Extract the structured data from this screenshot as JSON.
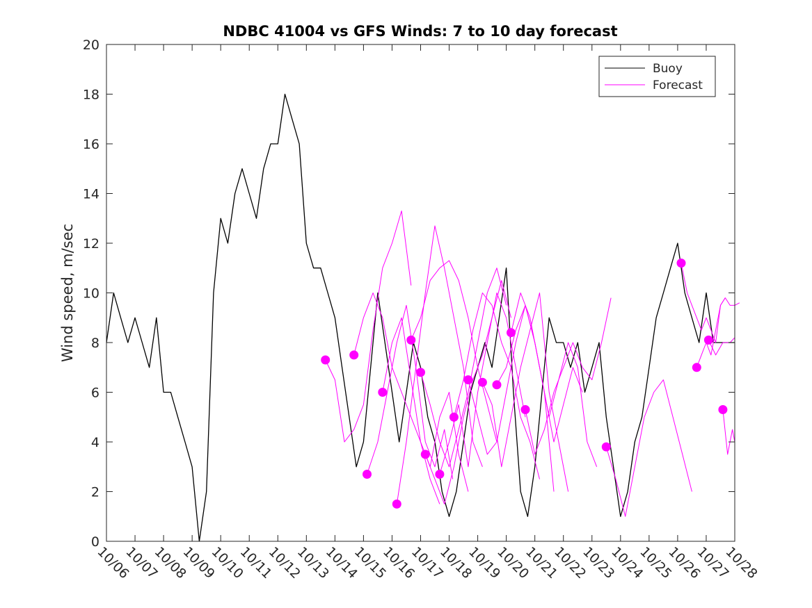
{
  "chart_data": {
    "type": "line",
    "title": "NDBC 41004 vs GFS Winds: 7 to 10 day forecast",
    "xlabel": "",
    "ylabel": "Wind speed, m/sec",
    "xlim": [
      "10/06",
      "10/28"
    ],
    "ylim": [
      0,
      20
    ],
    "x_unit": "date (MM/DD)",
    "x_tick_labels": [
      "10/06",
      "10/07",
      "10/08",
      "10/09",
      "10/10",
      "10/11",
      "10/12",
      "10/13",
      "10/14",
      "10/15",
      "10/16",
      "10/17",
      "10/18",
      "10/19",
      "10/20",
      "10/21",
      "10/22",
      "10/23",
      "10/24",
      "10/25",
      "10/26",
      "10/27",
      "10/28"
    ],
    "y_ticks": [
      0,
      2,
      4,
      6,
      8,
      10,
      12,
      14,
      16,
      18,
      20
    ],
    "grid": false,
    "legend": {
      "placement": "top-right",
      "entries": [
        "Buoy",
        "Forecast"
      ]
    },
    "colors": {
      "buoy": "#000000",
      "forecast": "#ff00ff"
    },
    "series": [
      {
        "name": "Buoy",
        "x": [
          "10/06 00h",
          "10/06 06h",
          "10/06 12h",
          "10/06 18h",
          "10/07 00h",
          "10/07 06h",
          "10/07 12h",
          "10/07 18h",
          "10/08 00h",
          "10/08 06h",
          "10/08 12h",
          "10/08 18h",
          "10/09 00h",
          "10/09 06h",
          "10/09 12h",
          "10/09 18h",
          "10/10 00h",
          "10/10 06h",
          "10/10 12h",
          "10/10 18h",
          "10/11 00h",
          "10/11 06h",
          "10/11 12h",
          "10/11 18h",
          "10/12 00h",
          "10/12 06h",
          "10/12 12h",
          "10/12 18h",
          "10/13 00h",
          "10/13 06h",
          "10/13 12h",
          "10/13 18h",
          "10/14 00h",
          "10/14 06h",
          "10/14 12h",
          "10/14 18h",
          "10/15 00h",
          "10/15 06h",
          "10/15 12h",
          "10/15 18h",
          "10/16 00h",
          "10/16 06h",
          "10/16 12h",
          "10/16 18h",
          "10/17 00h",
          "10/17 06h",
          "10/17 12h",
          "10/17 18h",
          "10/18 00h",
          "10/18 06h",
          "10/18 12h",
          "10/18 18h",
          "10/19 00h",
          "10/19 06h",
          "10/19 12h",
          "10/19 18h",
          "10/20 00h",
          "10/20 06h",
          "10/20 12h",
          "10/20 18h",
          "10/21 00h",
          "10/21 06h",
          "10/21 12h",
          "10/21 18h",
          "10/22 00h",
          "10/22 06h",
          "10/22 12h",
          "10/22 18h",
          "10/23 00h",
          "10/23 06h",
          "10/23 12h",
          "10/23 18h",
          "10/24 00h",
          "10/24 06h",
          "10/24 12h",
          "10/24 18h",
          "10/25 00h",
          "10/25 06h",
          "10/25 12h",
          "10/25 18h",
          "10/26 00h",
          "10/26 06h",
          "10/26 12h",
          "10/26 18h",
          "10/27 00h",
          "10/27 06h",
          "10/27 12h",
          "10/27 18h",
          "10/28 00h"
        ],
        "values": [
          8,
          10,
          9,
          8,
          9,
          8,
          7,
          9,
          6,
          6,
          5,
          4,
          3,
          0,
          2,
          10,
          13,
          12,
          14,
          15,
          14,
          13,
          15,
          16,
          16,
          18,
          17,
          16,
          12,
          11,
          11,
          10,
          9,
          7,
          5,
          3,
          4,
          7,
          10,
          8,
          6,
          4,
          6,
          8,
          7,
          5,
          4,
          2,
          1,
          2,
          4,
          6,
          7,
          8,
          7,
          9,
          11,
          6,
          2,
          1,
          3,
          6,
          9,
          8,
          8,
          7,
          8,
          6,
          7,
          8,
          5,
          3,
          1,
          2,
          4,
          5,
          7,
          9,
          10,
          11,
          12,
          10,
          9,
          8,
          10,
          8,
          8,
          8,
          8
        ]
      },
      {
        "name": "Forecast",
        "x": [
          "10/13 16h",
          "10/14 00h",
          "10/14 08h",
          "10/14 16h",
          "10/15 00h",
          "10/15 08h",
          "10/15 16h",
          "10/16 00h",
          "10/16 08h",
          "10/16 16h"
        ],
        "values": [
          7.3,
          6.5,
          4.0,
          4.5,
          5.5,
          8.5,
          11.0,
          12.0,
          13.3,
          10.3
        ]
      },
      {
        "name": "Forecast",
        "x": [
          "10/14 16h",
          "10/15 00h",
          "10/15 08h",
          "10/15 16h",
          "10/16 00h",
          "10/16 08h",
          "10/16 16h",
          "10/17 00h",
          "10/17 08h",
          "10/17 16h"
        ],
        "values": [
          7.5,
          9.0,
          10.0,
          9.0,
          7.0,
          6.0,
          5.0,
          4.0,
          2.5,
          1.5
        ]
      },
      {
        "name": "Forecast",
        "x": [
          "10/15 03h",
          "10/15 12h",
          "10/15 20h",
          "10/16 04h",
          "10/16 12h",
          "10/16 20h",
          "10/17 04h",
          "10/17 12h",
          "10/17 20h",
          "10/18 03h"
        ],
        "values": [
          2.7,
          4.0,
          6.0,
          8.0,
          9.5,
          7.0,
          4.0,
          3.0,
          4.5,
          2.5
        ]
      },
      {
        "name": "Forecast",
        "x": [
          "10/15 16h",
          "10/16 00h",
          "10/16 08h",
          "10/16 16h",
          "10/17 00h",
          "10/17 08h",
          "10/17 16h",
          "10/18 00h",
          "10/18 08h",
          "10/18 16h"
        ],
        "values": [
          6.0,
          8.0,
          9.0,
          6.5,
          4.0,
          3.0,
          5.0,
          6.0,
          3.5,
          2.0
        ]
      },
      {
        "name": "Forecast",
        "x": [
          "10/16 04h",
          "10/16 12h",
          "10/16 20h",
          "10/17 04h",
          "10/17 12h",
          "10/17 20h",
          "10/18 04h",
          "10/18 12h",
          "10/18 20h",
          "10/19 04h"
        ],
        "values": [
          1.5,
          4.0,
          7.0,
          10.0,
          12.7,
          11.0,
          9.0,
          7.0,
          4.0,
          3.0
        ]
      },
      {
        "name": "Forecast",
        "x": [
          "10/16 16h",
          "10/17 00h",
          "10/17 08h",
          "10/17 16h",
          "10/18 00h",
          "10/18 08h",
          "10/18 16h",
          "10/19 00h",
          "10/19 08h",
          "10/19 16h"
        ],
        "values": [
          8.1,
          9.0,
          10.5,
          11.0,
          11.3,
          10.5,
          9.0,
          7.0,
          5.5,
          4.0
        ]
      },
      {
        "name": "Forecast",
        "x": [
          "10/17 00h",
          "10/17 08h",
          "10/17 16h",
          "10/18 00h",
          "10/18 08h",
          "10/18 16h",
          "10/19 00h",
          "10/19 08h",
          "10/19 16h",
          "10/20 00h"
        ],
        "values": [
          6.8,
          5.5,
          4.0,
          3.0,
          4.5,
          6.0,
          8.0,
          10.0,
          11.0,
          9.5
        ]
      },
      {
        "name": "Forecast",
        "x": [
          "10/17 04h",
          "10/17 12h",
          "10/17 20h",
          "10/18 04h",
          "10/18 12h",
          "10/18 20h",
          "10/19 04h",
          "10/19 12h",
          "10/19 20h",
          "10/20 04h"
        ],
        "values": [
          3.5,
          2.5,
          1.5,
          3.0,
          5.0,
          6.5,
          7.5,
          9.0,
          10.5,
          9.0
        ]
      },
      {
        "name": "Forecast",
        "x": [
          "10/17 16h",
          "10/18 00h",
          "10/18 08h",
          "10/18 16h",
          "10/19 00h",
          "10/19 08h",
          "10/19 16h",
          "10/20 00h",
          "10/20 08h",
          "10/20 16h"
        ],
        "values": [
          2.7,
          4.0,
          5.5,
          3.0,
          6.0,
          8.0,
          10.0,
          9.0,
          7.0,
          5.0
        ]
      },
      {
        "name": "Forecast",
        "x": [
          "10/18 04h",
          "10/18 12h",
          "10/18 20h",
          "10/19 04h",
          "10/19 12h",
          "10/19 20h",
          "10/20 04h",
          "10/20 12h",
          "10/20 20h",
          "10/21 04h"
        ],
        "values": [
          5.0,
          6.5,
          8.5,
          10.0,
          9.5,
          8.0,
          7.0,
          5.0,
          4.0,
          2.5
        ]
      },
      {
        "name": "Forecast",
        "x": [
          "10/18 16h",
          "10/19 00h",
          "10/19 08h",
          "10/19 16h",
          "10/20 00h",
          "10/20 08h",
          "10/20 16h",
          "10/21 00h",
          "10/21 08h",
          "10/21 16h"
        ],
        "values": [
          6.5,
          5.0,
          3.5,
          4.0,
          6.0,
          8.0,
          9.5,
          8.0,
          6.0,
          2.0
        ]
      },
      {
        "name": "Forecast",
        "x": [
          "10/19 04h",
          "10/19 12h",
          "10/19 20h",
          "10/20 04h",
          "10/20 12h",
          "10/20 20h",
          "10/21 04h",
          "10/21 12h",
          "10/21 20h",
          "10/22 04h"
        ],
        "values": [
          6.4,
          5.5,
          3.0,
          5.0,
          7.0,
          8.5,
          10.0,
          6.0,
          4.0,
          2.0
        ]
      },
      {
        "name": "Forecast",
        "x": [
          "10/19 16h",
          "10/20 00h",
          "10/20 08h",
          "10/20 16h",
          "10/21 00h",
          "10/21 08h",
          "10/21 16h",
          "10/22 00h",
          "10/22 08h",
          "10/22 16h"
        ],
        "values": [
          6.3,
          7.0,
          8.5,
          9.5,
          8.0,
          6.0,
          4.0,
          5.5,
          7.0,
          6.0
        ]
      },
      {
        "name": "Forecast",
        "x": [
          "10/20 04h",
          "10/20 12h",
          "10/20 20h",
          "10/21 04h",
          "10/21 12h",
          "10/21 20h",
          "10/22 04h",
          "10/22 12h",
          "10/22 20h",
          "10/23 04h"
        ],
        "values": [
          8.4,
          10.0,
          9.0,
          7.0,
          5.0,
          6.5,
          8.0,
          7.0,
          4.0,
          3.0
        ]
      },
      {
        "name": "Forecast",
        "x": [
          "10/20 16h",
          "10/21 00h",
          "10/21 08h",
          "10/21 16h",
          "10/22 00h",
          "10/22 08h",
          "10/22 16h",
          "10/23 00h",
          "10/23 08h",
          "10/23 16h"
        ],
        "values": [
          5.3,
          3.5,
          4.5,
          6.0,
          7.0,
          8.0,
          7.0,
          6.5,
          8.0,
          9.8
        ]
      },
      {
        "name": "Forecast",
        "x": [
          "10/23 12h",
          "10/23 20h",
          "10/24 04h",
          "10/24 12h",
          "10/24 20h",
          "10/25 04h",
          "10/25 12h",
          "10/25 20h",
          "10/26 04h",
          "10/26 12h"
        ],
        "values": [
          3.8,
          2.5,
          1.0,
          3.0,
          5.0,
          6.0,
          6.5,
          5.0,
          3.5,
          2.0
        ]
      },
      {
        "name": "Forecast",
        "x": [
          "10/26 03h",
          "10/26 08h",
          "10/26 12h",
          "10/26 16h",
          "10/26 20h",
          "10/27 00h",
          "10/27 04h",
          "10/27 08h",
          "10/27 12h",
          "10/27 16h"
        ],
        "values": [
          11.2,
          10.0,
          9.5,
          9.0,
          8.5,
          9.0,
          8.5,
          8.0,
          9.5,
          9.8
        ]
      },
      {
        "name": "Forecast",
        "x": [
          "10/26 16h",
          "10/26 20h",
          "10/27 00h",
          "10/27 04h",
          "10/27 08h",
          "10/27 12h",
          "10/27 16h",
          "10/27 20h",
          "10/28 00h",
          "10/28 04h"
        ],
        "values": [
          7.0,
          7.5,
          8.0,
          7.5,
          8.5,
          9.5,
          9.8,
          9.5,
          9.5,
          9.6
        ]
      },
      {
        "name": "Forecast",
        "x": [
          "10/27 02h",
          "10/27 08h",
          "10/27 14h",
          "10/27 20h",
          "10/28 00h"
        ],
        "values": [
          8.1,
          7.5,
          8.0,
          8.0,
          8.2
        ]
      },
      {
        "name": "Forecast",
        "x": [
          "10/27 14h",
          "10/27 18h",
          "10/27 22h",
          "10/28 00h"
        ],
        "values": [
          5.3,
          3.5,
          4.5,
          4.0
        ]
      }
    ]
  }
}
